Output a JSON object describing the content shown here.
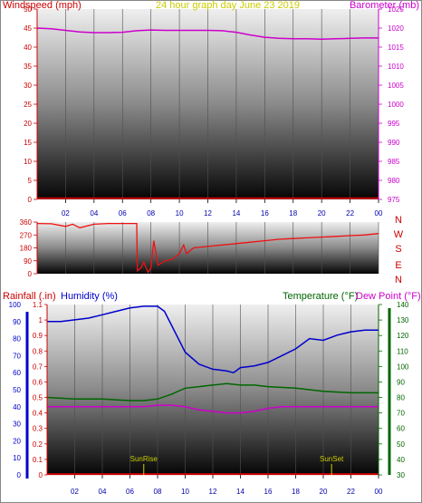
{
  "colors": {
    "windspeed": "#cc0000",
    "barometer": "#cc00cc",
    "title": "#cccc00",
    "direction": "#ee1111",
    "rainfall": "#cc0000",
    "humidity": "#0000cc",
    "temperature": "#006600",
    "dewpoint": "#cc00cc",
    "sun": "#cccc00",
    "plot_top": "#e8e8e8",
    "plot_bottom": "#000000"
  },
  "chart_data": [
    {
      "type": "line",
      "title": "24 hour graph day    June 23 2019",
      "ylabel_left": "Windspeed (mph)",
      "ylabel_right": "Barometer (mb)",
      "ylim_left": [
        0,
        50
      ],
      "ylim_right": [
        975,
        1025
      ],
      "yticks_left": [
        "0",
        "5",
        "10",
        "15",
        "20",
        "25",
        "30",
        "35",
        "40",
        "45",
        "50"
      ],
      "yticks_right": [
        "975",
        "980",
        "985",
        "990",
        "995",
        "1000",
        "1005",
        "1010",
        "1015",
        "1020",
        "1025"
      ],
      "xticks": [
        "02",
        "04",
        "06",
        "08",
        "10",
        "12",
        "14",
        "16",
        "18",
        "20",
        "22",
        "00"
      ],
      "x_hours": [
        0,
        24
      ],
      "series": [
        {
          "name": "Windspeed (mph)",
          "axis": "left",
          "x": [
            0,
            24
          ],
          "values": [
            0.3,
            0.3
          ]
        },
        {
          "name": "Barometer (mb)",
          "axis": "right",
          "x": [
            0,
            1,
            2,
            3,
            4,
            5,
            6,
            7,
            8,
            9,
            10,
            11,
            12,
            13,
            14,
            15,
            16,
            17,
            18,
            19,
            20,
            21,
            22,
            23,
            24
          ],
          "values": [
            1020.0,
            1019.8,
            1019.4,
            1019.0,
            1018.8,
            1018.8,
            1018.9,
            1019.3,
            1019.5,
            1019.4,
            1019.4,
            1019.4,
            1019.4,
            1019.3,
            1018.9,
            1018.2,
            1017.6,
            1017.3,
            1017.2,
            1017.2,
            1017.1,
            1017.2,
            1017.3,
            1017.4,
            1017.4
          ]
        }
      ]
    },
    {
      "type": "line",
      "yticks_left": [
        "0",
        "90",
        "180",
        "270",
        "360"
      ],
      "ylim": [
        0,
        360
      ],
      "compass_labels": [
        "N",
        "W",
        "S",
        "E",
        "N"
      ],
      "xlim": [
        0,
        24
      ],
      "series": [
        {
          "name": "Wind direction",
          "x": [
            0,
            1,
            2,
            2.5,
            3,
            4,
            5,
            6,
            7.0,
            7.05,
            7.3,
            7.5,
            7.8,
            8.0,
            8.2,
            8.5,
            9,
            9.5,
            10,
            10.3,
            10.5,
            11,
            12,
            13,
            14,
            15,
            16,
            17,
            18,
            19,
            20,
            21,
            22,
            23,
            24
          ],
          "values": [
            350,
            348,
            330,
            345,
            320,
            345,
            350,
            350,
            350,
            20,
            40,
            80,
            10,
            40,
            230,
            60,
            90,
            100,
            140,
            200,
            140,
            180,
            190,
            200,
            210,
            220,
            230,
            240,
            245,
            250,
            255,
            260,
            265,
            270,
            280
          ]
        }
      ]
    },
    {
      "type": "line",
      "ylabel_rain": "Rainfall (.in)",
      "ylabel_humidity": "Humidity (%)",
      "ylabel_temp": "Temperature (°F)",
      "ylabel_dew": "Dew Point (°F)",
      "yticks_humidity": [
        "0",
        "10",
        "20",
        "30",
        "40",
        "50",
        "60",
        "70",
        "80",
        "90",
        "100"
      ],
      "yticks_rain": [
        "0",
        "0.1",
        "0.2",
        "0.3",
        "0.4",
        "0.5",
        "0.6",
        "0.7",
        "0.8",
        "0.9",
        "1",
        "1.1"
      ],
      "yticks_temp": [
        "30",
        "40",
        "50",
        "60",
        "70",
        "80",
        "90",
        "100",
        "110",
        "120",
        "130",
        "140"
      ],
      "ylim_humidity": [
        0,
        100
      ],
      "ylim_rain": [
        0,
        1.1
      ],
      "ylim_temp": [
        30,
        140
      ],
      "xticks": [
        "02",
        "04",
        "06",
        "08",
        "10",
        "12",
        "14",
        "16",
        "18",
        "20",
        "22",
        "00"
      ],
      "annotations": [
        {
          "text": "SunRise",
          "x": 7.0
        },
        {
          "text": "SunSet",
          "x": 20.6
        }
      ],
      "series": [
        {
          "name": "Humidity (%)",
          "axis": "humidity",
          "x": [
            0,
            1,
            2,
            3,
            4,
            5,
            6,
            7,
            8,
            8.5,
            9,
            10,
            11,
            12,
            13,
            13.5,
            14,
            15,
            16,
            17,
            18,
            19,
            20,
            21,
            22,
            23,
            24
          ],
          "values": [
            90,
            90,
            91,
            92,
            94,
            96,
            98,
            99,
            99,
            96,
            88,
            72,
            65,
            62,
            61,
            60,
            63,
            64,
            66,
            70,
            74,
            80,
            79,
            82,
            84,
            85,
            85
          ]
        },
        {
          "name": "Rainfall (.in)",
          "axis": "rain",
          "x": [
            0,
            24
          ],
          "values": [
            0.005,
            0.005
          ]
        },
        {
          "name": "Temperature (°F)",
          "axis": "temp",
          "x": [
            0,
            2,
            4,
            6,
            7,
            8,
            9,
            10,
            11,
            12,
            13,
            14,
            15,
            16,
            18,
            20,
            22,
            24
          ],
          "values": [
            80,
            79,
            79,
            78,
            78,
            79,
            82,
            86,
            87,
            88,
            89,
            88,
            88,
            87,
            86,
            84,
            83,
            83
          ]
        },
        {
          "name": "Dew Point (°F)",
          "axis": "temp",
          "x": [
            0,
            2,
            4,
            6,
            7,
            8,
            9,
            10,
            11,
            12,
            13,
            14,
            15,
            16,
            17,
            18,
            20,
            22,
            24
          ],
          "values": [
            74,
            74,
            74,
            74,
            74,
            75,
            75,
            74,
            72,
            71,
            70,
            70,
            71,
            73,
            74,
            74,
            74,
            74,
            74
          ]
        }
      ]
    }
  ]
}
